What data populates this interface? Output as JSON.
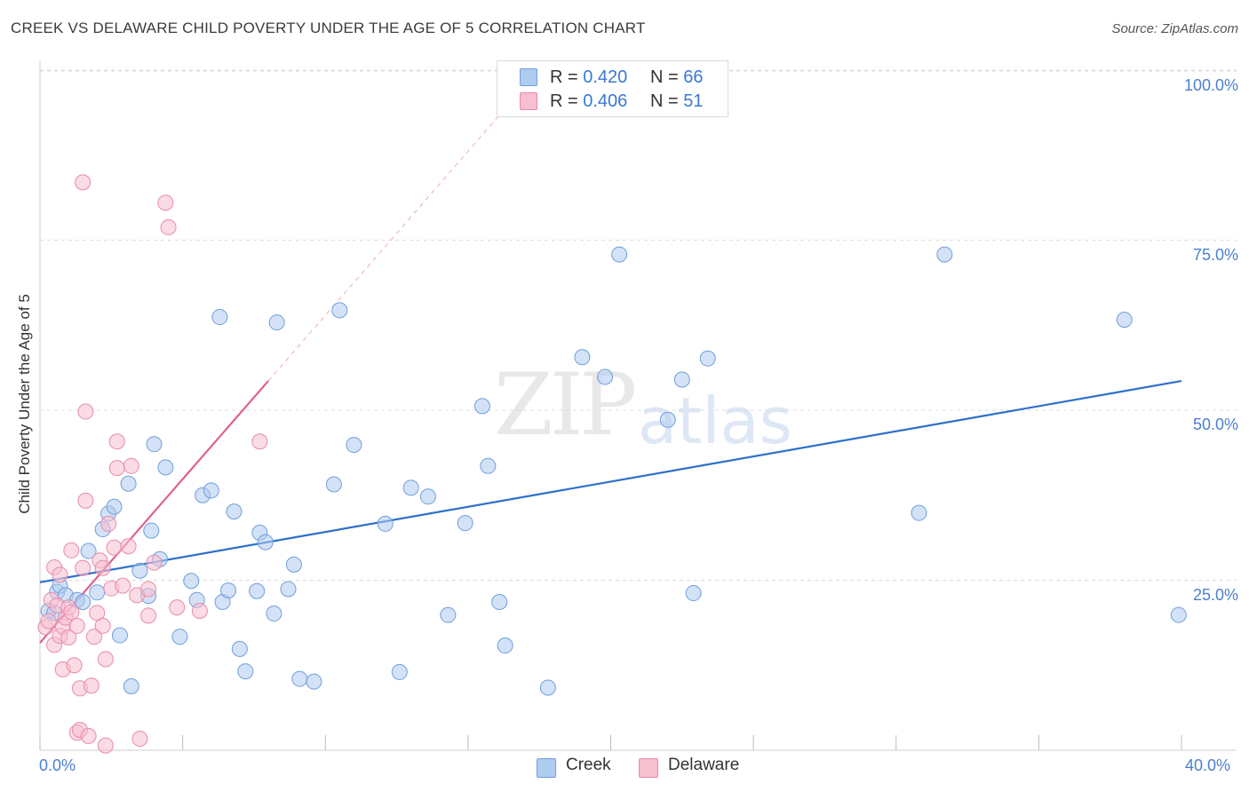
{
  "title": "CREEK VS DELAWARE CHILD POVERTY UNDER THE AGE OF 5 CORRELATION CHART",
  "source": "Source: ZipAtlas.com",
  "watermark": {
    "zip": "ZIP",
    "atlas": "atlas"
  },
  "legend": {
    "creek": {
      "r_label": "R =",
      "r_value": "0.420",
      "n_label": "N =",
      "n_value": "66"
    },
    "delaware": {
      "r_label": "R =",
      "r_value": "0.406",
      "n_label": "N =",
      "n_value": "51"
    }
  },
  "bottom_legend": {
    "creek": "Creek",
    "delaware": "Delaware"
  },
  "colors": {
    "creek_fill": "#aecbf0",
    "creek_stroke": "#6f9fdc",
    "creek_line": "#2d6fcc",
    "delaware_fill": "#f7bfd0",
    "delaware_stroke": "#e88aa8",
    "delaware_line": "#e0608a"
  },
  "chart_data": {
    "type": "scatter",
    "title": "CREEK VS DELAWARE CHILD POVERTY UNDER THE AGE OF 5 CORRELATION CHART",
    "xlabel": "",
    "ylabel": "Child Poverty Under the Age of 5",
    "xlim": [
      0,
      40
    ],
    "ylim": [
      0,
      100
    ],
    "x_tick_labels": [
      "0.0%",
      "40.0%"
    ],
    "y_tick_values": [
      25,
      50,
      75,
      100
    ],
    "y_tick_labels": [
      "25.0%",
      "50.0%",
      "75.0%",
      "100.0%"
    ],
    "series": [
      {
        "name": "Creek",
        "points": [
          [
            0.3,
            20.5
          ],
          [
            0.5,
            20.2
          ],
          [
            0.6,
            23.3
          ],
          [
            0.7,
            24.2
          ],
          [
            0.9,
            22.8
          ],
          [
            1.3,
            22.1
          ],
          [
            1.5,
            21.8
          ],
          [
            1.7,
            29.3
          ],
          [
            2.0,
            23.2
          ],
          [
            2.2,
            32.5
          ],
          [
            2.4,
            34.8
          ],
          [
            2.6,
            35.8
          ],
          [
            2.8,
            16.9
          ],
          [
            3.1,
            39.2
          ],
          [
            3.2,
            9.4
          ],
          [
            3.5,
            26.4
          ],
          [
            3.8,
            22.7
          ],
          [
            3.9,
            32.3
          ],
          [
            4.0,
            45.0
          ],
          [
            4.2,
            28.1
          ],
          [
            4.4,
            41.6
          ],
          [
            4.9,
            16.7
          ],
          [
            5.3,
            24.9
          ],
          [
            5.5,
            22.1
          ],
          [
            5.7,
            37.5
          ],
          [
            6.0,
            38.2
          ],
          [
            6.3,
            63.7
          ],
          [
            6.4,
            21.8
          ],
          [
            6.6,
            23.5
          ],
          [
            6.8,
            35.1
          ],
          [
            7.0,
            14.9
          ],
          [
            7.2,
            11.6
          ],
          [
            7.6,
            23.4
          ],
          [
            7.7,
            32.0
          ],
          [
            7.9,
            30.6
          ],
          [
            8.2,
            20.1
          ],
          [
            8.3,
            62.9
          ],
          [
            8.7,
            23.7
          ],
          [
            8.9,
            27.3
          ],
          [
            9.1,
            10.5
          ],
          [
            9.6,
            10.1
          ],
          [
            10.3,
            39.1
          ],
          [
            10.5,
            64.7
          ],
          [
            11.0,
            44.9
          ],
          [
            12.1,
            33.3
          ],
          [
            12.6,
            11.5
          ],
          [
            13.0,
            38.6
          ],
          [
            13.6,
            37.3
          ],
          [
            14.3,
            19.9
          ],
          [
            14.9,
            33.4
          ],
          [
            15.5,
            50.6
          ],
          [
            15.7,
            41.8
          ],
          [
            16.1,
            21.8
          ],
          [
            16.3,
            15.4
          ],
          [
            17.8,
            9.2
          ],
          [
            19.0,
            57.8
          ],
          [
            19.8,
            54.9
          ],
          [
            20.3,
            72.9
          ],
          [
            22.0,
            48.6
          ],
          [
            22.5,
            54.5
          ],
          [
            22.9,
            23.1
          ],
          [
            23.4,
            57.6
          ],
          [
            30.8,
            34.9
          ],
          [
            31.7,
            72.9
          ],
          [
            38.0,
            63.3
          ],
          [
            39.9,
            19.9
          ]
        ],
        "trendline": {
          "x": [
            0,
            40
          ],
          "y": [
            24.7,
            54.3
          ]
        }
      },
      {
        "name": "Delaware",
        "points": [
          [
            0.2,
            18.1
          ],
          [
            0.3,
            19.0
          ],
          [
            0.4,
            22.1
          ],
          [
            0.5,
            15.5
          ],
          [
            0.5,
            26.9
          ],
          [
            0.6,
            21.3
          ],
          [
            0.7,
            25.8
          ],
          [
            0.7,
            16.8
          ],
          [
            0.8,
            11.9
          ],
          [
            0.8,
            18.2
          ],
          [
            0.9,
            19.5
          ],
          [
            1.0,
            21.0
          ],
          [
            1.0,
            16.6
          ],
          [
            1.1,
            29.4
          ],
          [
            1.1,
            20.3
          ],
          [
            1.2,
            12.5
          ],
          [
            1.3,
            18.3
          ],
          [
            1.3,
            2.6
          ],
          [
            1.4,
            3.0
          ],
          [
            1.4,
            9.1
          ],
          [
            1.5,
            83.5
          ],
          [
            1.5,
            26.8
          ],
          [
            1.6,
            36.7
          ],
          [
            1.6,
            49.8
          ],
          [
            1.7,
            2.1
          ],
          [
            1.8,
            9.5
          ],
          [
            1.9,
            16.7
          ],
          [
            2.0,
            20.2
          ],
          [
            2.1,
            27.9
          ],
          [
            2.2,
            26.8
          ],
          [
            2.2,
            18.3
          ],
          [
            2.3,
            13.4
          ],
          [
            2.3,
            0.7
          ],
          [
            2.4,
            33.3
          ],
          [
            2.5,
            23.8
          ],
          [
            2.6,
            29.8
          ],
          [
            2.7,
            41.5
          ],
          [
            2.7,
            45.4
          ],
          [
            2.9,
            24.2
          ],
          [
            3.1,
            30.0
          ],
          [
            3.2,
            41.8
          ],
          [
            3.4,
            22.8
          ],
          [
            3.5,
            1.7
          ],
          [
            3.8,
            19.8
          ],
          [
            3.8,
            23.7
          ],
          [
            4.0,
            27.6
          ],
          [
            4.4,
            80.5
          ],
          [
            4.5,
            76.9
          ],
          [
            4.8,
            21.0
          ],
          [
            5.6,
            20.5
          ],
          [
            7.7,
            45.4
          ]
        ],
        "trendline": {
          "x": [
            0,
            8
          ],
          "y": [
            15.8,
            54.3
          ]
        },
        "trendline_extension": {
          "x": [
            8,
            16.5
          ],
          "y": [
            54.3,
            95.3
          ]
        }
      }
    ]
  }
}
